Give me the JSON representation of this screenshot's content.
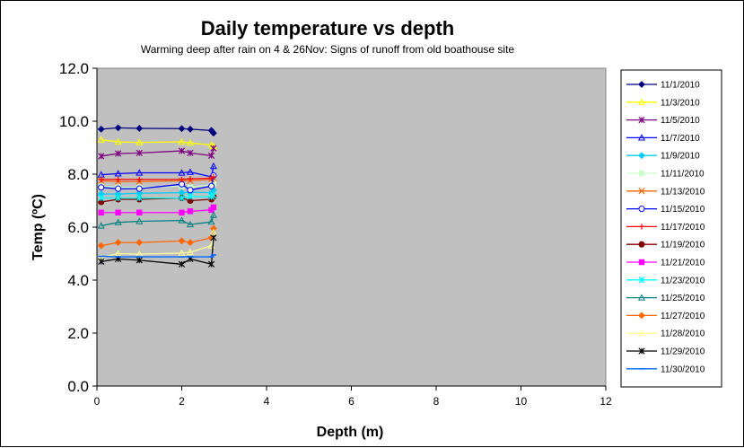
{
  "chart_data": {
    "type": "line",
    "title": "Daily temperature vs depth",
    "subtitle": "Warming deep after rain on 4 & 26Nov: Signs of runoff from old boathouse site",
    "xlabel": "Depth (m)",
    "ylabel": "Temp (ºC)",
    "xlim": [
      0,
      12
    ],
    "ylim": [
      0,
      12
    ],
    "xticks": [
      0,
      2,
      4,
      6,
      8,
      10,
      12
    ],
    "xtick_labels": [
      "0",
      "2",
      "4",
      "6",
      "8",
      "10",
      "12"
    ],
    "yticks": [
      0,
      2,
      4,
      6,
      8,
      10,
      12
    ],
    "ytick_labels": [
      "0.0",
      "2.0",
      "4.0",
      "6.0",
      "8.0",
      "10.0",
      "12.0"
    ],
    "plot_background": "#c0c0c0",
    "grid": false,
    "legend_position": "right",
    "series": [
      {
        "name": "11/1/2010",
        "color": "#000080",
        "marker": "diamond",
        "x": [
          0.1,
          0.5,
          1,
          2,
          2.2,
          2.7,
          2.75
        ],
        "y": [
          9.7,
          9.75,
          9.73,
          9.72,
          9.7,
          9.65,
          9.55
        ]
      },
      {
        "name": "11/3/2010",
        "color": "#ffff00",
        "marker": "triangle",
        "x": [
          0.1,
          0.5,
          1,
          2,
          2.2,
          2.7,
          2.75
        ],
        "y": [
          9.3,
          9.22,
          9.2,
          9.22,
          9.18,
          9.1,
          9.05
        ]
      },
      {
        "name": "11/5/2010",
        "color": "#800080",
        "marker": "star",
        "x": [
          0.1,
          0.5,
          1,
          2,
          2.2,
          2.7,
          2.75
        ],
        "y": [
          8.68,
          8.78,
          8.8,
          8.88,
          8.8,
          8.7,
          8.98
        ]
      },
      {
        "name": "11/7/2010",
        "color": "#0000ff",
        "marker": "triangle",
        "x": [
          0.1,
          0.5,
          1,
          2,
          2.2,
          2.7,
          2.75
        ],
        "y": [
          7.98,
          8.02,
          8.05,
          8.05,
          8.08,
          7.9,
          8.3
        ]
      },
      {
        "name": "11/9/2010",
        "color": "#00ccff",
        "marker": "diamond",
        "x": [
          0.1,
          0.5,
          1,
          2,
          2.2,
          2.7,
          2.75
        ],
        "y": [
          7.25,
          7.25,
          7.28,
          7.3,
          7.32,
          7.3,
          7.4
        ]
      },
      {
        "name": "11/11/2010",
        "color": "#ccffcc",
        "marker": "square",
        "x": [
          0.1,
          0.5,
          1,
          2,
          2.2,
          2.7,
          2.75
        ],
        "y": [
          7.55,
          7.5,
          7.5,
          7.55,
          7.5,
          7.6,
          7.65
        ]
      },
      {
        "name": "11/13/2010",
        "color": "#ff6600",
        "marker": "x",
        "x": [
          0.1,
          0.5,
          1,
          2,
          2.2,
          2.7,
          2.75
        ],
        "y": [
          7.75,
          7.72,
          7.72,
          7.75,
          7.75,
          7.8,
          7.85
        ]
      },
      {
        "name": "11/15/2010",
        "color": "#0000ff",
        "marker": "circle",
        "x": [
          0.1,
          0.5,
          1,
          2,
          2.2,
          2.7,
          2.75
        ],
        "y": [
          7.5,
          7.45,
          7.45,
          7.62,
          7.4,
          7.55,
          7.95
        ]
      },
      {
        "name": "11/17/2010",
        "color": "#ff0000",
        "marker": "plus",
        "x": [
          0.1,
          0.5,
          1,
          2,
          2.2,
          2.7,
          2.75
        ],
        "y": [
          7.8,
          7.8,
          7.8,
          7.8,
          7.82,
          7.85,
          7.9
        ]
      },
      {
        "name": "11/19/2010",
        "color": "#800000",
        "marker": "circle",
        "x": [
          0.1,
          0.5,
          1,
          2,
          2.2,
          2.7,
          2.75
        ],
        "y": [
          6.95,
          7.05,
          7.05,
          7.1,
          7.0,
          7.05,
          7.15
        ]
      },
      {
        "name": "11/21/2010",
        "color": "#ff00ff",
        "marker": "square",
        "x": [
          0.1,
          0.5,
          1,
          2,
          2.2,
          2.7,
          2.75
        ],
        "y": [
          6.55,
          6.55,
          6.55,
          6.55,
          6.6,
          6.65,
          6.75
        ]
      },
      {
        "name": "11/23/2010",
        "color": "#00ffff",
        "marker": "star",
        "x": [
          0.1,
          0.5,
          1,
          2,
          2.2,
          2.7,
          2.75
        ],
        "y": [
          7.1,
          7.1,
          7.1,
          7.1,
          7.15,
          7.15,
          7.2
        ]
      },
      {
        "name": "11/25/2010",
        "color": "#008080",
        "marker": "triangle",
        "x": [
          0.1,
          0.5,
          1,
          2,
          2.2,
          2.7,
          2.75
        ],
        "y": [
          6.05,
          6.18,
          6.22,
          6.25,
          6.1,
          6.2,
          6.45
        ]
      },
      {
        "name": "11/27/2010",
        "color": "#ff6600",
        "marker": "diamond",
        "x": [
          0.1,
          0.5,
          1,
          2,
          2.2,
          2.7,
          2.75
        ],
        "y": [
          5.3,
          5.42,
          5.42,
          5.48,
          5.42,
          5.6,
          5.95
        ]
      },
      {
        "name": "11/28/2010",
        "color": "#ffff99",
        "marker": "triangle",
        "x": [
          0.1,
          0.5,
          1,
          2,
          2.2,
          2.7,
          2.75
        ],
        "y": [
          4.85,
          5.0,
          4.98,
          5.02,
          5.05,
          5.3,
          5.8
        ]
      },
      {
        "name": "11/29/2010",
        "color": "#000000",
        "marker": "star",
        "x": [
          0.1,
          0.5,
          1,
          2,
          2.2,
          2.7,
          2.75
        ],
        "y": [
          4.7,
          4.8,
          4.75,
          4.6,
          4.8,
          4.6,
          5.6
        ]
      },
      {
        "name": "11/30/2010",
        "color": "#0066ff",
        "marker": "dash",
        "x": [
          0.1,
          0.5,
          1,
          2,
          2.2,
          2.7,
          2.75
        ],
        "y": [
          4.9,
          4.88,
          4.88,
          4.88,
          4.88,
          4.88,
          4.95
        ]
      }
    ]
  }
}
